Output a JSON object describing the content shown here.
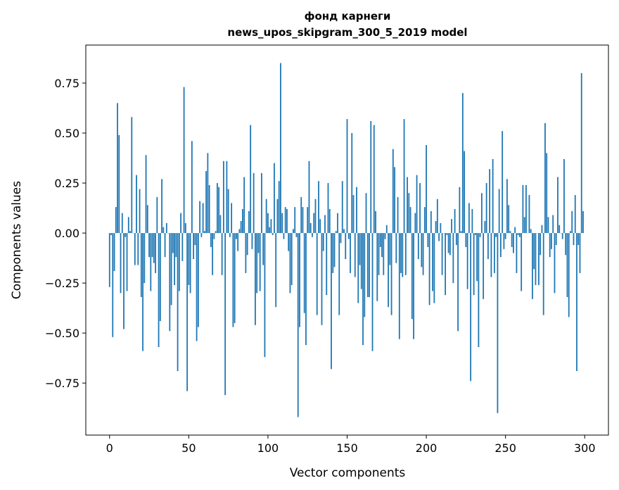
{
  "chart_data": {
    "type": "bar",
    "title": "фонд карнеги",
    "subtitle": "news_upos_skipgram_300_5_2019 model",
    "xlabel": "Vector components",
    "ylabel": "Components values",
    "xlim": [
      -15,
      315
    ],
    "ylim": [
      -1.01,
      0.94
    ],
    "xticks": [
      0,
      50,
      100,
      150,
      200,
      250,
      300
    ],
    "yticks": [
      -0.75,
      -0.5,
      -0.25,
      0.0,
      0.25,
      0.5,
      0.75
    ],
    "ytick_labels": [
      "−0.75",
      "−0.50",
      "−0.25",
      "0.00",
      "0.25",
      "0.50",
      "0.75"
    ],
    "grid": false,
    "color": "#1f77b4",
    "values": [
      -0.27,
      -0.01,
      -0.52,
      -0.19,
      0.13,
      0.65,
      0.49,
      -0.3,
      0.1,
      -0.48,
      -0.02,
      -0.29,
      0.08,
      0.01,
      0.58,
      0.0,
      -0.16,
      0.29,
      -0.16,
      0.22,
      -0.32,
      -0.59,
      -0.25,
      0.39,
      0.14,
      -0.12,
      -0.29,
      -0.12,
      -0.15,
      -0.2,
      0.18,
      -0.57,
      -0.44,
      0.27,
      0.03,
      -0.12,
      0.05,
      0.0,
      -0.49,
      -0.36,
      -0.1,
      -0.26,
      -0.12,
      -0.69,
      -0.29,
      0.1,
      -0.14,
      0.73,
      0.05,
      -0.79,
      -0.26,
      -0.3,
      0.46,
      -0.13,
      -0.06,
      -0.54,
      -0.47,
      0.16,
      -0.02,
      0.15,
      0.01,
      0.31,
      0.4,
      0.24,
      -0.07,
      -0.21,
      -0.03,
      0.01,
      0.25,
      0.23,
      0.09,
      -0.21,
      0.36,
      -0.81,
      0.36,
      0.22,
      -0.02,
      0.15,
      -0.47,
      -0.45,
      -0.03,
      -0.09,
      0.02,
      0.06,
      0.12,
      0.28,
      -0.2,
      -0.11,
      0.11,
      0.54,
      -0.08,
      0.3,
      -0.46,
      -0.3,
      -0.1,
      -0.29,
      0.3,
      -0.16,
      -0.62,
      0.17,
      0.1,
      0.03,
      0.07,
      -0.01,
      0.35,
      -0.37,
      0.17,
      0.26,
      0.85,
      0.1,
      -0.03,
      0.13,
      0.12,
      -0.09,
      -0.3,
      -0.26,
      0.02,
      0.13,
      -0.02,
      -0.92,
      -0.47,
      0.18,
      0.13,
      -0.4,
      -0.56,
      0.13,
      0.36,
      0.05,
      -0.02,
      0.1,
      0.17,
      -0.41,
      0.26,
      0.07,
      -0.46,
      -0.09,
      0.09,
      -0.31,
      0.25,
      0.12,
      -0.68,
      -0.2,
      -0.17,
      0.01,
      0.1,
      -0.41,
      -0.05,
      0.26,
      0.02,
      -0.13,
      0.57,
      -0.03,
      -0.2,
      0.5,
      0.19,
      -0.22,
      0.23,
      -0.35,
      -0.16,
      -0.28,
      -0.56,
      -0.42,
      0.2,
      -0.32,
      -0.32,
      0.56,
      -0.59,
      0.54,
      0.11,
      -0.34,
      -0.21,
      -0.07,
      -0.12,
      -0.21,
      -0.03,
      0.04,
      -0.37,
      -0.16,
      -0.41,
      0.42,
      0.33,
      -0.15,
      0.18,
      -0.53,
      -0.2,
      -0.22,
      0.57,
      -0.21,
      0.28,
      0.2,
      0.13,
      -0.43,
      -0.53,
      0.1,
      0.29,
      -0.13,
      0.25,
      -0.17,
      -0.21,
      0.13,
      0.44,
      -0.07,
      -0.36,
      0.11,
      -0.29,
      -0.35,
      0.06,
      0.17,
      -0.04,
      0.05,
      -0.21,
      0.0,
      -0.31,
      -0.01,
      -0.1,
      -0.11,
      0.07,
      -0.25,
      0.12,
      -0.06,
      -0.49,
      0.23,
      0.01,
      0.7,
      0.41,
      -0.07,
      -0.28,
      0.15,
      -0.74,
      0.12,
      -0.31,
      -0.01,
      -0.24,
      -0.57,
      -0.02,
      0.2,
      -0.33,
      0.06,
      0.25,
      -0.13,
      0.32,
      -0.22,
      0.37,
      -0.2,
      -0.02,
      -0.9,
      0.22,
      -0.12,
      0.51,
      -0.08,
      -0.03,
      0.27,
      0.14,
      0.01,
      -0.07,
      -0.1,
      0.03,
      -0.2,
      -0.01,
      -0.02,
      -0.29,
      0.24,
      0.08,
      0.24,
      0.0,
      0.19,
      0.02,
      -0.33,
      -0.18,
      -0.26,
      0.0,
      -0.26,
      -0.11,
      0.04,
      -0.41,
      0.55,
      0.4,
      0.08,
      -0.12,
      -0.08,
      0.09,
      -0.3,
      -0.06,
      0.28,
      0.04,
      0.0,
      -0.03,
      0.37,
      -0.11,
      -0.32,
      -0.42,
      0.01,
      0.11,
      -0.06,
      0.19,
      -0.69,
      -0.06,
      -0.2,
      0.8,
      0.11
    ]
  }
}
